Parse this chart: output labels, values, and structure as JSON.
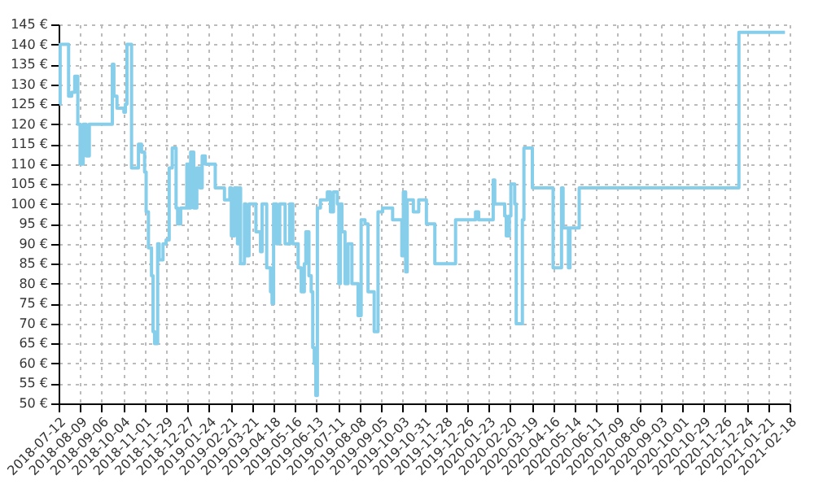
{
  "chart_data": {
    "type": "step",
    "series": [
      {
        "color": "#87ceeb",
        "x": [
          "2018-07-13",
          "2018-07-14",
          "2018-07-25",
          "2018-07-29",
          "2018-08-02",
          "2018-08-06",
          "2018-08-09",
          "2018-08-13",
          "2018-08-17",
          "2018-08-21",
          "2018-09-20",
          "2018-09-22",
          "2018-09-26",
          "2018-10-05",
          "2018-10-07",
          "2018-10-09",
          "2018-10-15",
          "2018-10-24",
          "2018-10-28",
          "2018-11-01",
          "2018-11-03",
          "2018-11-06",
          "2018-11-10",
          "2018-11-12",
          "2018-11-14",
          "2018-11-18",
          "2018-11-20",
          "2018-11-25",
          "2018-11-29",
          "2018-12-03",
          "2018-12-07",
          "2018-12-12",
          "2018-12-14",
          "2018-12-18",
          "2018-12-26",
          "2018-12-29",
          "2018-12-31",
          "2019-01-04",
          "2019-01-08",
          "2019-01-12",
          "2019-01-15",
          "2019-01-19",
          "2019-02-01",
          "2019-02-13",
          "2019-02-20",
          "2019-02-22",
          "2019-02-26",
          "2019-03-02",
          "2019-03-04",
          "2019-03-06",
          "2019-03-11",
          "2019-03-13",
          "2019-03-17",
          "2019-03-26",
          "2019-04-01",
          "2019-04-03",
          "2019-04-09",
          "2019-04-14",
          "2019-04-16",
          "2019-04-18",
          "2019-04-22",
          "2019-04-26",
          "2019-05-03",
          "2019-05-09",
          "2019-05-13",
          "2019-05-20",
          "2019-05-24",
          "2019-05-28",
          "2019-05-30",
          "2019-06-03",
          "2019-06-06",
          "2019-06-08",
          "2019-06-10",
          "2019-06-12",
          "2019-06-14",
          "2019-06-18",
          "2019-06-27",
          "2019-07-01",
          "2019-07-05",
          "2019-07-10",
          "2019-07-12",
          "2019-07-14",
          "2019-07-16",
          "2019-07-20",
          "2019-07-24",
          "2019-07-29",
          "2019-08-06",
          "2019-08-10",
          "2019-08-15",
          "2019-08-19",
          "2019-08-27",
          "2019-09-01",
          "2019-09-07",
          "2019-09-20",
          "2019-10-02",
          "2019-10-04",
          "2019-10-07",
          "2019-10-09",
          "2019-10-17",
          "2019-10-24",
          "2019-11-03",
          "2019-11-14",
          "2019-12-11",
          "2020-01-06",
          "2020-01-10",
          "2020-01-29",
          "2020-01-31",
          "2020-02-13",
          "2020-02-15",
          "2020-02-19",
          "2020-02-21",
          "2020-02-26",
          "2020-02-28",
          "2020-03-07",
          "2020-03-09",
          "2020-03-20",
          "2020-04-16",
          "2020-04-27",
          "2020-04-29",
          "2020-05-06",
          "2020-05-08",
          "2020-05-20",
          "2020-12-14",
          "2021-02-12"
        ],
        "values": [
          125,
          140,
          127,
          128,
          132,
          120,
          110,
          120,
          112,
          120,
          135,
          127,
          124,
          123,
          125,
          140,
          109,
          115,
          113,
          108,
          98,
          89,
          82,
          68,
          65,
          90,
          86,
          90,
          91,
          109,
          114,
          99,
          95,
          99,
          110,
          99,
          113,
          99,
          109,
          104,
          112,
          110,
          104,
          101,
          104,
          92,
          104,
          90,
          104,
          85,
          100,
          87,
          100,
          93,
          88,
          100,
          84,
          78,
          75,
          100,
          90,
          100,
          90,
          100,
          90,
          84,
          78,
          85,
          93,
          82,
          78,
          64,
          60,
          52,
          99,
          101,
          103,
          98,
          103,
          100,
          80,
          100,
          93,
          80,
          90,
          80,
          72,
          96,
          95,
          78,
          68,
          98,
          99,
          96,
          87,
          103,
          83,
          101,
          98,
          101,
          95,
          85,
          96,
          98,
          96,
          106,
          100,
          97,
          92,
          97,
          105,
          100,
          70,
          96,
          114,
          104,
          84,
          104,
          94,
          84,
          94,
          104,
          143,
          143
        ]
      }
    ],
    "xlim": [
      "2018-07-12",
      "2021-02-18"
    ],
    "xticks": [
      "2018-07-12",
      "2018-08-09",
      "2018-09-06",
      "2018-10-04",
      "2018-11-01",
      "2018-11-29",
      "2018-12-27",
      "2019-01-24",
      "2019-02-21",
      "2019-03-21",
      "2019-04-18",
      "2019-05-16",
      "2019-06-13",
      "2019-07-11",
      "2019-08-08",
      "2019-09-05",
      "2019-10-03",
      "2019-10-31",
      "2019-11-28",
      "2019-12-26",
      "2020-01-23",
      "2020-02-20",
      "2020-03-19",
      "2020-04-16",
      "2020-05-14",
      "2020-06-11",
      "2020-07-09",
      "2020-08-06",
      "2020-09-03",
      "2020-10-01",
      "2020-10-29",
      "2020-11-26",
      "2020-12-24",
      "2021-01-21",
      "2021-02-18"
    ],
    "ylim": [
      50,
      145
    ],
    "yticks": [
      {
        "value": 50,
        "label": "50 €"
      },
      {
        "value": 55,
        "label": "55 €"
      },
      {
        "value": 60,
        "label": "60 €"
      },
      {
        "value": 65,
        "label": "65 €"
      },
      {
        "value": 70,
        "label": "70 €"
      },
      {
        "value": 75,
        "label": "75 €"
      },
      {
        "value": 80,
        "label": "80 €"
      },
      {
        "value": 85,
        "label": "85 €"
      },
      {
        "value": 90,
        "label": "90 €"
      },
      {
        "value": 95,
        "label": "95 €"
      },
      {
        "value": 100,
        "label": "100 €"
      },
      {
        "value": 105,
        "label": "105 €"
      },
      {
        "value": 110,
        "label": "110 €"
      },
      {
        "value": 115,
        "label": "115 €"
      },
      {
        "value": 120,
        "label": "120 €"
      },
      {
        "value": 125,
        "label": "125 €"
      },
      {
        "value": 130,
        "label": "130 €"
      },
      {
        "value": 135,
        "label": "135 €"
      },
      {
        "value": 140,
        "label": "140 €"
      },
      {
        "value": 145,
        "label": "145 €"
      }
    ],
    "grid": true
  }
}
